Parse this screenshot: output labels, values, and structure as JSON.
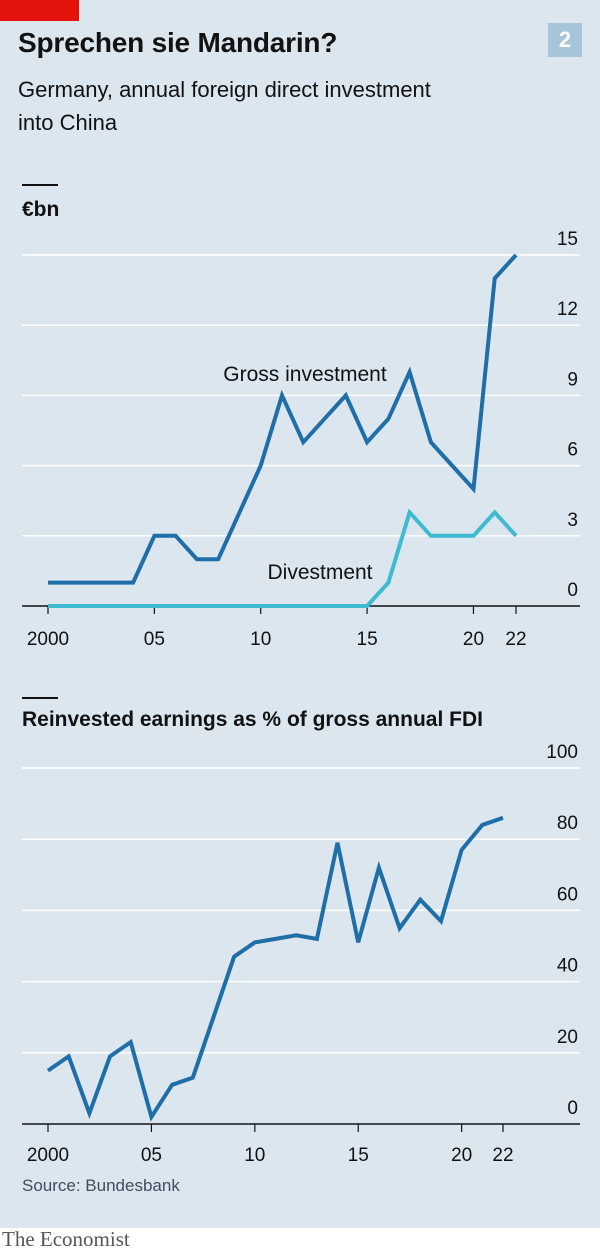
{
  "header": {
    "badge": "2",
    "title": "Sprechen sie Mandarin?",
    "subtitle": "Germany, annual foreign direct investment into China"
  },
  "colors": {
    "background": "#dbe6ef",
    "dark_blue": "#1f6ea8",
    "light_blue": "#3ebbd0",
    "red_tag": "#e3120b",
    "gridline": "#ffffff"
  },
  "chart_data": [
    {
      "type": "line",
      "unit_label": "€bn",
      "x": [
        2000,
        2001,
        2002,
        2003,
        2004,
        2005,
        2006,
        2007,
        2008,
        2009,
        2010,
        2011,
        2012,
        2013,
        2014,
        2015,
        2016,
        2017,
        2018,
        2019,
        2020,
        2021,
        2022
      ],
      "x_tick_labels": [
        {
          "x": 2000,
          "label": "2000"
        },
        {
          "x": 2005,
          "label": "05"
        },
        {
          "x": 2010,
          "label": "10"
        },
        {
          "x": 2015,
          "label": "15"
        },
        {
          "x": 2020,
          "label": "20"
        },
        {
          "x": 2022,
          "label": "22"
        }
      ],
      "yticks": [
        0,
        3,
        6,
        9,
        12,
        15
      ],
      "ylim": [
        0,
        15
      ],
      "series": [
        {
          "name": "Gross investment",
          "color": "#1f6ea8",
          "values": [
            1.0,
            1.0,
            1.0,
            1.0,
            1.0,
            3.0,
            3.0,
            2.0,
            2.0,
            4.0,
            6.0,
            9.0,
            7.0,
            8.0,
            9.0,
            7.0,
            8.0,
            10.0,
            7.0,
            6.0,
            5.0,
            14.0,
            15.0
          ]
        },
        {
          "name": "Divestment",
          "color": "#3ebbd0",
          "values": [
            0,
            0,
            0,
            0,
            0,
            0,
            0,
            0,
            0,
            0,
            0,
            0,
            0,
            0,
            0,
            0,
            1.0,
            4.0,
            3.0,
            3.0,
            3.0,
            4.0,
            3.0
          ]
        }
      ],
      "grid": true
    },
    {
      "type": "line",
      "title": "Reinvested earnings as % of gross annual FDI",
      "x": [
        2000,
        2001,
        2002,
        2003,
        2004,
        2005,
        2006,
        2007,
        2008,
        2009,
        2010,
        2011,
        2012,
        2013,
        2014,
        2015,
        2016,
        2017,
        2018,
        2019,
        2020,
        2021,
        2022
      ],
      "x_tick_labels": [
        {
          "x": 2000,
          "label": "2000"
        },
        {
          "x": 2005,
          "label": "05"
        },
        {
          "x": 2010,
          "label": "10"
        },
        {
          "x": 2015,
          "label": "15"
        },
        {
          "x": 2020,
          "label": "20"
        },
        {
          "x": 2022,
          "label": "22"
        }
      ],
      "yticks": [
        0,
        20,
        40,
        60,
        80,
        100
      ],
      "ylim": [
        0,
        100
      ],
      "series": [
        {
          "color": "#1f6ea8",
          "values": [
            15,
            19,
            3,
            19,
            23,
            2,
            11,
            13,
            30,
            47,
            51,
            52,
            53,
            52,
            79,
            51,
            72,
            55,
            63,
            57,
            77,
            84,
            86
          ]
        }
      ],
      "grid": true
    }
  ],
  "source": "Source: Bundesbank",
  "footer": "The Economist"
}
